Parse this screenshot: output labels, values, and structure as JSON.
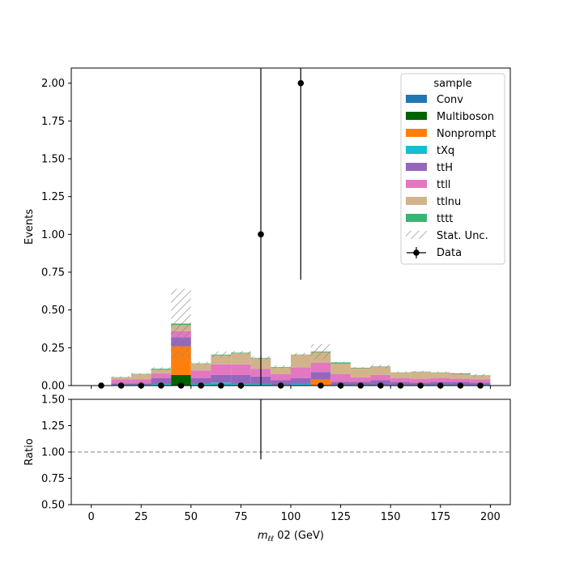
{
  "chart_data": [
    {
      "type": "bar",
      "stacked": true,
      "bin_edges": [
        0,
        10,
        20,
        30,
        40,
        50,
        60,
        70,
        80,
        90,
        100,
        110,
        120,
        130,
        140,
        150,
        160,
        170,
        180,
        190,
        200
      ],
      "ylabel": "Events",
      "xlim": [
        -10,
        210
      ],
      "ylim": [
        0,
        2.1
      ],
      "yticks": [
        "0.00",
        "0.25",
        "0.50",
        "0.75",
        "1.00",
        "1.25",
        "1.50",
        "1.75",
        "2.00"
      ],
      "ytick_values": [
        0,
        0.25,
        0.5,
        0.75,
        1.0,
        1.25,
        1.5,
        1.75,
        2.0
      ],
      "legend": {
        "title": "sample",
        "placement": "top-right"
      },
      "series": [
        {
          "name": "Conv",
          "color": "#1f77b4",
          "values": [
            0,
            0,
            0,
            0,
            0,
            0,
            0,
            0,
            0,
            0,
            0,
            0,
            0,
            0,
            0,
            0,
            0,
            0,
            0,
            0
          ]
        },
        {
          "name": "Multiboson",
          "color": "#006400",
          "values": [
            0,
            0,
            0,
            0,
            0.07,
            0,
            0,
            0,
            0,
            0,
            0,
            0,
            0,
            0,
            0,
            0,
            0,
            0,
            0,
            0
          ]
        },
        {
          "name": "Nonprompt",
          "color": "#ff7f0e",
          "values": [
            0,
            0,
            0,
            0,
            0.19,
            0,
            0,
            0,
            0,
            0,
            0,
            0.04,
            0,
            0,
            0,
            0,
            0,
            0,
            0,
            0
          ]
        },
        {
          "name": "tXq",
          "color": "#17becf",
          "values": [
            0,
            0.005,
            0.005,
            0.01,
            0,
            0.01,
            0.02,
            0.01,
            0.01,
            0.005,
            0.01,
            0,
            0.005,
            0.005,
            0.005,
            0.005,
            0.005,
            0.005,
            0.005,
            0.005
          ]
        },
        {
          "name": "ttH",
          "color": "#9467bd",
          "values": [
            0,
            0.01,
            0.01,
            0.04,
            0.06,
            0.04,
            0.05,
            0.06,
            0.05,
            0.03,
            0.04,
            0.05,
            0.02,
            0.02,
            0.03,
            0.02,
            0.015,
            0.02,
            0.02,
            0.015
          ]
        },
        {
          "name": "ttll",
          "color": "#e377c2",
          "values": [
            0,
            0.025,
            0.025,
            0.03,
            0.04,
            0.05,
            0.07,
            0.07,
            0.05,
            0.04,
            0.07,
            0.06,
            0.05,
            0.03,
            0.035,
            0.025,
            0.025,
            0.025,
            0.02,
            0.02
          ]
        },
        {
          "name": "ttlnu",
          "color": "#d2b48c",
          "values": [
            0,
            0.015,
            0.035,
            0.025,
            0.04,
            0.045,
            0.06,
            0.075,
            0.07,
            0.045,
            0.085,
            0.07,
            0.07,
            0.06,
            0.055,
            0.035,
            0.045,
            0.035,
            0.03,
            0.025
          ]
        },
        {
          "name": "tttt",
          "color": "#3cb371",
          "values": [
            0,
            0.001,
            0.002,
            0.006,
            0.01,
            0.002,
            0.005,
            0.003,
            0.003,
            0.003,
            0.001,
            0.005,
            0.008,
            0.003,
            0.002,
            0.002,
            0.002,
            0.002,
            0.005,
            0.003
          ]
        }
      ],
      "stat_unc": {
        "name": "Stat. Unc.",
        "values": [
          0,
          0.005,
          0.005,
          0.01,
          0.23,
          0.01,
          0.02,
          0.01,
          0.01,
          0.01,
          0.01,
          0.05,
          0.005,
          0.005,
          0.01,
          0.005,
          0.005,
          0.005,
          0.005,
          0.01
        ]
      },
      "data": {
        "name": "Data",
        "x": [
          5,
          15,
          25,
          35,
          45,
          55,
          65,
          75,
          85,
          95,
          105,
          115,
          125,
          135,
          145,
          155,
          165,
          175,
          185,
          195
        ],
        "y": [
          0,
          0,
          0,
          0,
          0,
          0,
          0,
          0,
          1,
          0,
          2,
          0,
          0,
          0,
          0,
          0,
          0,
          0,
          0,
          0
        ],
        "yerr": [
          0,
          0,
          0,
          0,
          0,
          0,
          0,
          0,
          1.7,
          0,
          1.3,
          0,
          0,
          0,
          0,
          0,
          0,
          0,
          0,
          0
        ]
      }
    },
    {
      "type": "line",
      "ylabel": "Ratio",
      "xlabel": "m",
      "xlabel_sub": "ℓℓ",
      "xlabel_rest": " 02 (GeV)",
      "xlim": [
        -10,
        210
      ],
      "ylim": [
        0.5,
        1.5
      ],
      "xticks": [
        "0",
        "25",
        "50",
        "75",
        "100",
        "125",
        "150",
        "175",
        "200"
      ],
      "xtick_values": [
        0,
        25,
        50,
        75,
        100,
        125,
        150,
        175,
        200
      ],
      "yticks": [
        "0.50",
        "0.75",
        "1.00",
        "1.25",
        "1.50"
      ],
      "ytick_values": [
        0.5,
        0.75,
        1.0,
        1.25,
        1.5
      ],
      "reference_line": 1.0,
      "ratio_errorbars": [
        {
          "x": 85,
          "y": 1.0,
          "ylow": 0.93,
          "yhigh": 1.5
        }
      ]
    }
  ]
}
